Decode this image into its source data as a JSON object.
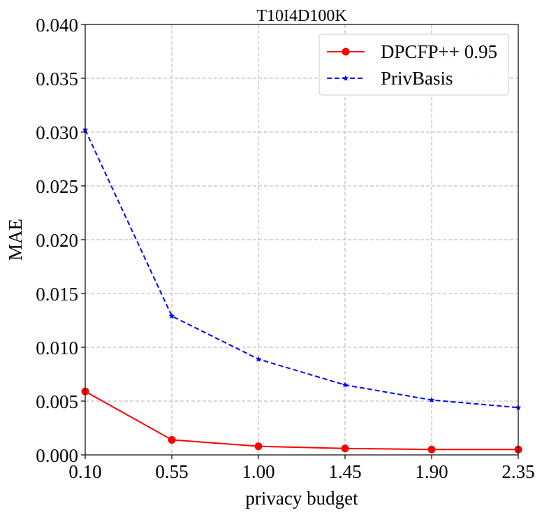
{
  "chart_data": {
    "type": "line",
    "title": "T10I4D100K",
    "xlabel": "privacy budget",
    "ylabel": "MAE",
    "x": [
      0.1,
      0.55,
      1.0,
      1.45,
      1.9,
      2.35
    ],
    "x_tick_labels": [
      "0.10",
      "0.55",
      "1.00",
      "1.45",
      "1.90",
      "2.35"
    ],
    "y_tick_labels": [
      "0.000",
      "0.005",
      "0.010",
      "0.015",
      "0.020",
      "0.025",
      "0.030",
      "0.035",
      "0.040"
    ],
    "xlim": [
      0.1,
      2.35
    ],
    "ylim": [
      0.0,
      0.04
    ],
    "grid": true,
    "legend_position": "upper-right",
    "series": [
      {
        "name": "DPCFP++ 0.95",
        "color": "#ff0000",
        "line_style": "solid",
        "marker": "circle",
        "values": [
          0.0059,
          0.0014,
          0.0008,
          0.0006,
          0.0005,
          0.0005
        ]
      },
      {
        "name": "PrivBasis",
        "color": "#0000ff",
        "line_style": "dashed",
        "marker": "star",
        "values": [
          0.0302,
          0.0129,
          0.0089,
          0.0065,
          0.0051,
          0.0044
        ]
      }
    ]
  }
}
